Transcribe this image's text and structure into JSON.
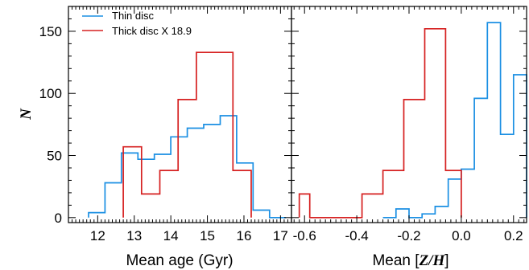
{
  "chart_data": [
    {
      "type": "histogram",
      "xlabel": "Mean age (Gyr)",
      "ylabel": "N",
      "xlim": [
        11.2,
        17.3
      ],
      "ylim": [
        -4,
        170
      ],
      "xticks": [
        12,
        13,
        14,
        15,
        16,
        17
      ],
      "yticks": [
        0,
        50,
        100,
        150
      ],
      "legend": {
        "placement": "top-left",
        "entries": [
          "Thin disc",
          "Thick disc X 18.9"
        ]
      },
      "series": [
        {
          "name": "Thin disc",
          "color": "#1a8fe3",
          "bin_edges": [
            11.75,
            12.2,
            12.65,
            13.1,
            13.55,
            14.0,
            14.45,
            14.9,
            15.35,
            15.8,
            16.25,
            16.7,
            17.15
          ],
          "values": [
            4,
            28,
            52,
            47,
            51,
            65,
            72,
            75,
            82,
            44,
            6,
            0
          ]
        },
        {
          "name": "Thick disc X 18.9",
          "color": "#d62020",
          "bin_edges": [
            12.7,
            13.2,
            13.7,
            14.2,
            14.7,
            15.7,
            16.2
          ],
          "values": [
            57,
            19,
            38,
            95,
            133,
            38
          ]
        }
      ]
    },
    {
      "type": "histogram",
      "xlabel": "Mean [Z/H]",
      "ylabel": "",
      "xlim": [
        -0.65,
        0.25
      ],
      "ylim": [
        -4,
        170
      ],
      "xticks": [
        -0.6,
        -0.4,
        -0.2,
        0.0,
        0.2
      ],
      "xtick_labels": [
        "-0.6",
        "-0.4",
        "-0.2",
        "0.0",
        "0.2"
      ],
      "yticks": [
        0,
        50,
        100,
        150
      ],
      "series": [
        {
          "name": "Thin disc",
          "color": "#1a8fe3",
          "bin_edges": [
            -0.3,
            -0.25,
            -0.2,
            -0.15,
            -0.1,
            -0.05,
            0.0,
            0.05,
            0.1,
            0.15,
            0.2,
            0.25
          ],
          "values": [
            0,
            7,
            0,
            3,
            9,
            31,
            39,
            96,
            157,
            67,
            115
          ]
        },
        {
          "name": "Thick disc X 18.9",
          "color": "#d62020",
          "bin_edges": [
            -0.62,
            -0.58,
            -0.38,
            -0.3,
            -0.22,
            -0.14,
            -0.06,
            0.0
          ],
          "values": [
            19,
            0,
            19,
            38,
            95,
            152,
            38
          ]
        }
      ]
    }
  ]
}
